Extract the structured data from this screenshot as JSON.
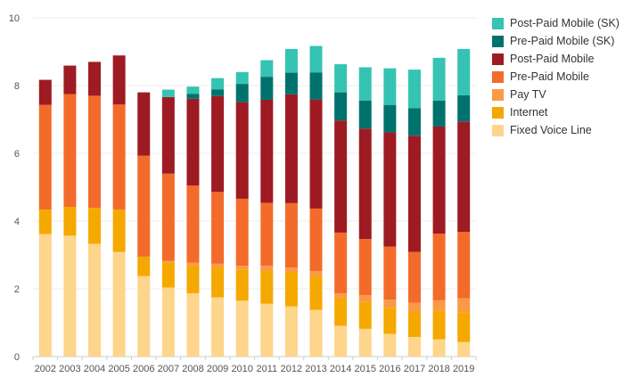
{
  "chart_data": {
    "type": "bar",
    "stacked": true,
    "title": "",
    "xlabel": "",
    "ylabel": "",
    "ylim": [
      0,
      10
    ],
    "yticks": [
      0,
      2,
      4,
      6,
      8,
      10
    ],
    "grid": true,
    "legend_position": "top-right",
    "categories": [
      "2002",
      "2003",
      "2004",
      "2005",
      "2006",
      "2007",
      "2008",
      "2009",
      "2010",
      "2011",
      "2012",
      "2013",
      "2014",
      "2015",
      "2016",
      "2017",
      "2018",
      "2019"
    ],
    "series": [
      {
        "name": "Fixed Voice Line",
        "color": "#fdd58b",
        "values": [
          3.62,
          3.57,
          3.33,
          3.09,
          2.38,
          2.04,
          1.87,
          1.75,
          1.65,
          1.56,
          1.48,
          1.38,
          0.91,
          0.82,
          0.67,
          0.58,
          0.51,
          0.43
        ]
      },
      {
        "name": "Internet",
        "color": "#f5a800",
        "values": [
          0.72,
          0.85,
          1.06,
          1.25,
          0.57,
          0.74,
          0.83,
          0.88,
          0.92,
          0.98,
          1.02,
          1.0,
          0.83,
          0.79,
          0.77,
          0.75,
          0.84,
          0.87
        ]
      },
      {
        "name": "Pay TV",
        "color": "#fa9a45",
        "values": [
          0,
          0,
          0,
          0,
          0,
          0.05,
          0.07,
          0.11,
          0.11,
          0.14,
          0.13,
          0.14,
          0.13,
          0.2,
          0.24,
          0.26,
          0.31,
          0.42
        ]
      },
      {
        "name": "Pre-Paid Mobile",
        "color": "#f36b2b",
        "values": [
          3.09,
          3.33,
          3.31,
          3.1,
          2.98,
          2.57,
          2.28,
          2.12,
          1.98,
          1.86,
          1.9,
          1.85,
          1.79,
          1.66,
          1.57,
          1.5,
          1.97,
          1.96
        ]
      },
      {
        "name": "Post-Paid Mobile",
        "color": "#9e1b23",
        "values": [
          0.74,
          0.84,
          1.0,
          1.45,
          1.87,
          2.26,
          2.56,
          2.83,
          2.85,
          3.04,
          3.21,
          3.22,
          3.31,
          3.26,
          3.37,
          3.43,
          3.16,
          3.26
        ]
      },
      {
        "name": "Pre-Paid Mobile (SK)",
        "color": "#00726e",
        "values": [
          0,
          0,
          0,
          0,
          0,
          0,
          0.14,
          0.2,
          0.54,
          0.68,
          0.64,
          0.8,
          0.83,
          0.83,
          0.81,
          0.81,
          0.77,
          0.77
        ]
      },
      {
        "name": "Post-Paid Mobile (SK)",
        "color": "#35c3b3",
        "values": [
          0,
          0,
          0,
          0,
          0,
          0.22,
          0.22,
          0.33,
          0.35,
          0.49,
          0.7,
          0.78,
          0.83,
          0.98,
          1.08,
          1.14,
          1.26,
          1.37
        ]
      }
    ]
  }
}
